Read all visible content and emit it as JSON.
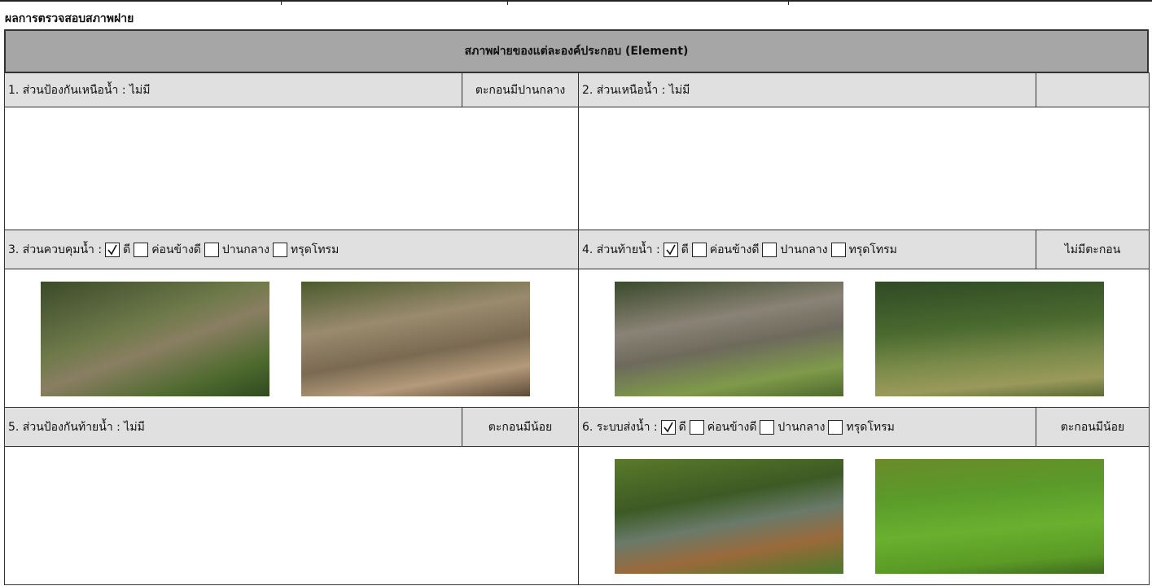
{
  "title": "ผลการตรวจสอบสภาพฝาย",
  "table": {
    "header": "สภาพฝายของแต่ละองค์ประกอบ (Element)",
    "sections": [
      {
        "label": "1. ส่วนป้องกันเหนือน้ำ : ไม่มี",
        "status": "ตะกอนมีปานกลาง"
      },
      {
        "label": "2. ส่วนเหนือน้ำ : ไม่มี"
      },
      {
        "label": "3. ส่วนควบคุมน้ำ :",
        "options": [
          {
            "label": "ดี",
            "checked": true
          },
          {
            "label": "ค่อนข้างดี",
            "checked": false
          },
          {
            "label": "ปานกลาง",
            "checked": false
          },
          {
            "label": "ทรุดโทรม",
            "checked": false
          }
        ]
      },
      {
        "label": "4. ส่วนท้ายน้ำ :",
        "options": [
          {
            "label": "ดี",
            "checked": true
          },
          {
            "label": "ค่อนข้างดี",
            "checked": false
          },
          {
            "label": "ปานกลาง",
            "checked": false
          },
          {
            "label": "ทรุดโทรม",
            "checked": false
          }
        ],
        "status": "ไม่มีตะกอน"
      },
      {
        "label": "5. ส่วนป้องกันท้ายน้ำ : ไม่มี",
        "status": "ตะกอนมีน้อย"
      },
      {
        "label": "6. ระบบส่งน้ำ :",
        "options": [
          {
            "label": "ดี",
            "checked": true
          },
          {
            "label": "ค่อนข้างดี",
            "checked": false
          },
          {
            "label": "ปานกลาง",
            "checked": false
          },
          {
            "label": "ทรุดโทรม",
            "checked": false
          }
        ],
        "status": "ตะกอนมีน้อย"
      }
    ]
  }
}
